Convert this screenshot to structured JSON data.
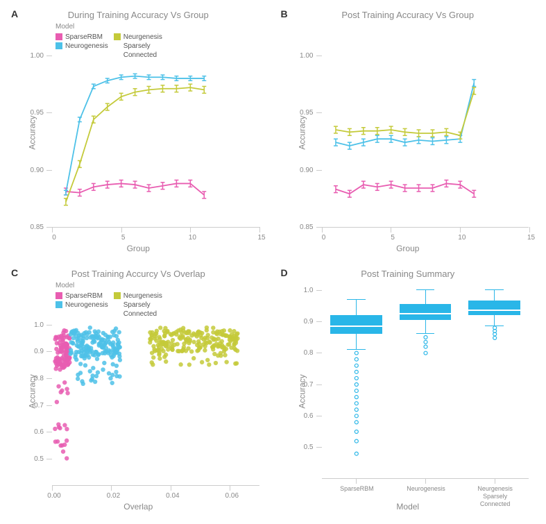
{
  "colors": {
    "sparseRBM": "#e85db1",
    "neurogenesis": "#4dc1e8",
    "neurgenesisSparsely": "#c4ca3a",
    "boxFill": "#29b6e8",
    "grid": "#cccccc",
    "text": "#888888",
    "bg": "#ffffff"
  },
  "panelA": {
    "letter": "A",
    "title": "During Training Accuracy Vs Group",
    "xlabel": "Group",
    "ylabel": "Accuracy",
    "xlim": [
      0,
      15
    ],
    "ylim": [
      0.85,
      1.0
    ],
    "xticks": [
      0,
      5,
      10,
      15
    ],
    "yticks": [
      0.85,
      0.9,
      0.95,
      1.0
    ],
    "legend": {
      "title": "Model",
      "items": [
        {
          "label": "SparseRBM",
          "color": "#e85db1"
        },
        {
          "label": "Neurogenesis",
          "color": "#4dc1e8"
        },
        {
          "label": "Neurgenesis\nSparsely\nConnected",
          "color": "#c4ca3a"
        }
      ]
    },
    "series": [
      {
        "color": "#e85db1",
        "x": [
          1,
          2,
          3,
          4,
          5,
          6,
          7,
          8,
          9,
          10,
          11
        ],
        "y": [
          0.881,
          0.88,
          0.885,
          0.887,
          0.888,
          0.887,
          0.884,
          0.886,
          0.888,
          0.888,
          0.878
        ],
        "err": 0.003
      },
      {
        "color": "#4dc1e8",
        "x": [
          1,
          2,
          3,
          4,
          5,
          6,
          7,
          8,
          9,
          10,
          11
        ],
        "y": [
          0.88,
          0.944,
          0.973,
          0.978,
          0.981,
          0.982,
          0.981,
          0.981,
          0.98,
          0.98,
          0.98
        ],
        "err": 0.002
      },
      {
        "color": "#c4ca3a",
        "x": [
          1,
          2,
          3,
          4,
          5,
          6,
          7,
          8,
          9,
          10,
          11
        ],
        "y": [
          0.872,
          0.905,
          0.944,
          0.955,
          0.964,
          0.968,
          0.97,
          0.971,
          0.971,
          0.972,
          0.97
        ],
        "err": 0.003
      }
    ]
  },
  "panelB": {
    "letter": "B",
    "title": "Post Training Accuracy Vs Group",
    "xlabel": "Group",
    "ylabel": "Accuracy",
    "xlim": [
      0,
      15
    ],
    "ylim": [
      0.85,
      1.0
    ],
    "xticks": [
      0,
      5,
      10,
      15
    ],
    "yticks": [
      0.85,
      0.9,
      0.95,
      1.0
    ],
    "series": [
      {
        "color": "#e85db1",
        "x": [
          1,
          2,
          3,
          4,
          5,
          6,
          7,
          8,
          9,
          10,
          11
        ],
        "y": [
          0.883,
          0.879,
          0.887,
          0.885,
          0.887,
          0.884,
          0.884,
          0.884,
          0.888,
          0.887,
          0.879
        ],
        "err": 0.003
      },
      {
        "color": "#4dc1e8",
        "x": [
          1,
          2,
          3,
          4,
          5,
          6,
          7,
          8,
          9,
          10,
          11
        ],
        "y": [
          0.924,
          0.921,
          0.924,
          0.927,
          0.927,
          0.924,
          0.926,
          0.925,
          0.926,
          0.927,
          0.976
        ],
        "err": 0.003
      },
      {
        "color": "#c4ca3a",
        "x": [
          1,
          2,
          3,
          4,
          5,
          6,
          7,
          8,
          9,
          10,
          11
        ],
        "y": [
          0.935,
          0.933,
          0.934,
          0.934,
          0.935,
          0.933,
          0.932,
          0.932,
          0.933,
          0.93,
          0.969
        ],
        "err": 0.003
      }
    ]
  },
  "panelC": {
    "letter": "C",
    "title": "Post Training Accurcy Vs Overlap",
    "xlabel": "Overlap",
    "ylabel": "Accuracy",
    "xlim": [
      0,
      0.07
    ],
    "ylim": [
      0.4,
      1.0
    ],
    "xticks": [
      0.0,
      0.02,
      0.04,
      0.06
    ],
    "yticks": [
      0.5,
      0.6,
      0.7,
      0.8,
      0.9,
      1.0
    ],
    "legend": {
      "title": "Model",
      "items": [
        {
          "label": "SparseRBM",
          "color": "#e85db1"
        },
        {
          "label": "Neurogenesis",
          "color": "#4dc1e8"
        },
        {
          "label": "Neurgenesis\nSparsely\nConnected",
          "color": "#c4ca3a"
        }
      ]
    },
    "scatterClusters": [
      {
        "color": "#e85db1",
        "n": 120,
        "xRange": [
          0.001,
          0.006
        ],
        "yRange": [
          0.47,
          0.98
        ],
        "yBias": 0.9
      },
      {
        "color": "#4dc1e8",
        "n": 180,
        "xRange": [
          0.006,
          0.023
        ],
        "yRange": [
          0.78,
          0.99
        ],
        "yBias": 0.93
      },
      {
        "color": "#c4ca3a",
        "n": 220,
        "xRange": [
          0.033,
          0.063
        ],
        "yRange": [
          0.85,
          0.99
        ],
        "yBias": 0.94
      }
    ]
  },
  "panelD": {
    "letter": "D",
    "title": "Post Training Summary",
    "xlabel": "Model",
    "ylabel": "Accuracy",
    "ylim": [
      0.4,
      1.0
    ],
    "yticks": [
      0.5,
      0.6,
      0.7,
      0.8,
      0.9,
      1.0
    ],
    "categories": [
      "SparseRBM",
      "Neurogenesis",
      "Neurgenesis\nSparsely\nConnected"
    ],
    "boxes": [
      {
        "q1": 0.86,
        "median": 0.885,
        "q3": 0.92,
        "whiskLo": 0.81,
        "whiskHi": 0.97,
        "outliers": [
          0.48,
          0.52,
          0.55,
          0.58,
          0.6,
          0.62,
          0.64,
          0.66,
          0.68,
          0.7,
          0.72,
          0.74,
          0.76,
          0.78,
          0.8
        ]
      },
      {
        "q1": 0.905,
        "median": 0.925,
        "q3": 0.955,
        "whiskLo": 0.862,
        "whiskHi": 1.0,
        "outliers": [
          0.8,
          0.82,
          0.835,
          0.85
        ]
      },
      {
        "q1": 0.92,
        "median": 0.935,
        "q3": 0.965,
        "whiskLo": 0.885,
        "whiskHi": 1.0,
        "outliers": [
          0.848,
          0.86,
          0.87,
          0.88
        ]
      }
    ]
  }
}
